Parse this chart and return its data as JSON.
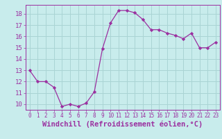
{
  "x": [
    0,
    1,
    2,
    3,
    4,
    5,
    6,
    7,
    8,
    9,
    10,
    11,
    12,
    13,
    14,
    15,
    16,
    17,
    18,
    19,
    20,
    21,
    22,
    23
  ],
  "y": [
    13,
    12,
    12,
    11.5,
    9.8,
    10,
    9.8,
    10.1,
    11.1,
    14.9,
    17.2,
    18.3,
    18.3,
    18.1,
    17.5,
    16.6,
    16.6,
    16.3,
    16.1,
    15.8,
    16.3,
    15.0,
    15.0,
    15.5
  ],
  "line_color": "#9b30a0",
  "marker": "D",
  "marker_size": 2.2,
  "bg_color": "#c8ecec",
  "grid_color": "#aad4d4",
  "xlabel": "Windchill (Refroidissement éolien,°C)",
  "xlabel_fontsize": 7.5,
  "tick_fontsize": 6.5,
  "ylim": [
    9.5,
    18.8
  ],
  "yticks": [
    10,
    11,
    12,
    13,
    14,
    15,
    16,
    17,
    18
  ],
  "xlim": [
    -0.5,
    23.5
  ],
  "xticks": [
    0,
    1,
    2,
    3,
    4,
    5,
    6,
    7,
    8,
    9,
    10,
    11,
    12,
    13,
    14,
    15,
    16,
    17,
    18,
    19,
    20,
    21,
    22,
    23
  ]
}
